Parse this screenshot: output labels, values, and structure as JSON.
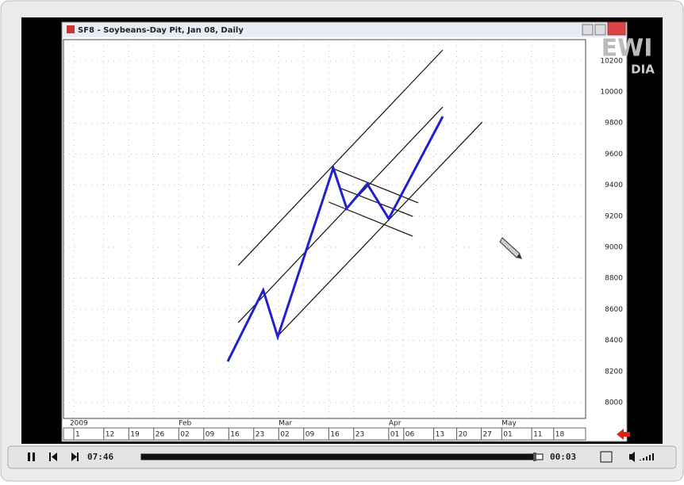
{
  "window": {
    "title": "SF8 - Soybeans-Day Pit, Jan 08, Daily"
  },
  "watermark": [
    "EWI",
    "DIA"
  ],
  "player": {
    "elapsed": "07:46",
    "remaining": "00:03",
    "progress": 98
  },
  "chart_data": {
    "type": "line",
    "series": [
      {
        "color": "#2020d0",
        "x": [
          30.8,
          37.9,
          40.8,
          51.9,
          54.6,
          58.7,
          63.0,
          73.8
        ],
        "values": [
          8265,
          8724,
          8423,
          9510,
          9250,
          9408,
          9184,
          9842
        ]
      }
    ],
    "lines": [
      {
        "color": "#111111",
        "x": [
          32.9,
          73.8
        ],
        "values": [
          8883,
          10270
        ]
      },
      {
        "color": "#111111",
        "x": [
          32.9,
          73.8
        ],
        "values": [
          8515,
          9903
        ]
      },
      {
        "color": "#111111",
        "x": [
          41.1,
          81.7
        ],
        "values": [
          8439,
          9806
        ]
      },
      {
        "color": "#111111",
        "x": [
          51.6,
          68.9
        ],
        "values": [
          9510,
          9286
        ]
      },
      {
        "color": "#111111",
        "x": [
          53.5,
          67.8
        ],
        "values": [
          9378,
          9199
        ]
      },
      {
        "color": "#111111",
        "x": [
          51.0,
          67.8
        ],
        "values": [
          9291,
          9071
        ]
      }
    ],
    "xlim": [
      -2.06,
      102.38
    ],
    "xticks": [
      {
        "value": 0,
        "label": "1"
      },
      {
        "value": 6,
        "label": "12"
      },
      {
        "value": 11,
        "label": "19"
      },
      {
        "value": 16,
        "label": "26"
      },
      {
        "value": 21,
        "label": "02"
      },
      {
        "value": 26,
        "label": "09"
      },
      {
        "value": 31,
        "label": "16"
      },
      {
        "value": 36,
        "label": "23"
      },
      {
        "value": 41,
        "label": "02"
      },
      {
        "value": 46,
        "label": "09"
      },
      {
        "value": 51,
        "label": "16"
      },
      {
        "value": 56,
        "label": "23"
      },
      {
        "value": 63,
        "label": "01"
      },
      {
        "value": 66,
        "label": "06"
      },
      {
        "value": 72,
        "label": "13"
      },
      {
        "value": 76.6,
        "label": "20"
      },
      {
        "value": 81.5,
        "label": "27"
      },
      {
        "value": 85.6,
        "label": "01"
      },
      {
        "value": 91.6,
        "label": "11"
      },
      {
        "value": 96,
        "label": "18"
      }
    ],
    "month_labels": [
      {
        "value": -0.8,
        "label": "2009"
      },
      {
        "value": 21,
        "label": "Feb"
      },
      {
        "value": 41,
        "label": "Mar"
      },
      {
        "value": 63,
        "label": "Apr"
      },
      {
        "value": 85.6,
        "label": "May"
      }
    ],
    "ylim": [
      7898,
      10337
    ],
    "yticks": [
      8000,
      8200,
      8400,
      8600,
      8800,
      9000,
      9200,
      9400,
      9600,
      9800,
      10000,
      10200
    ],
    "grid": true
  }
}
